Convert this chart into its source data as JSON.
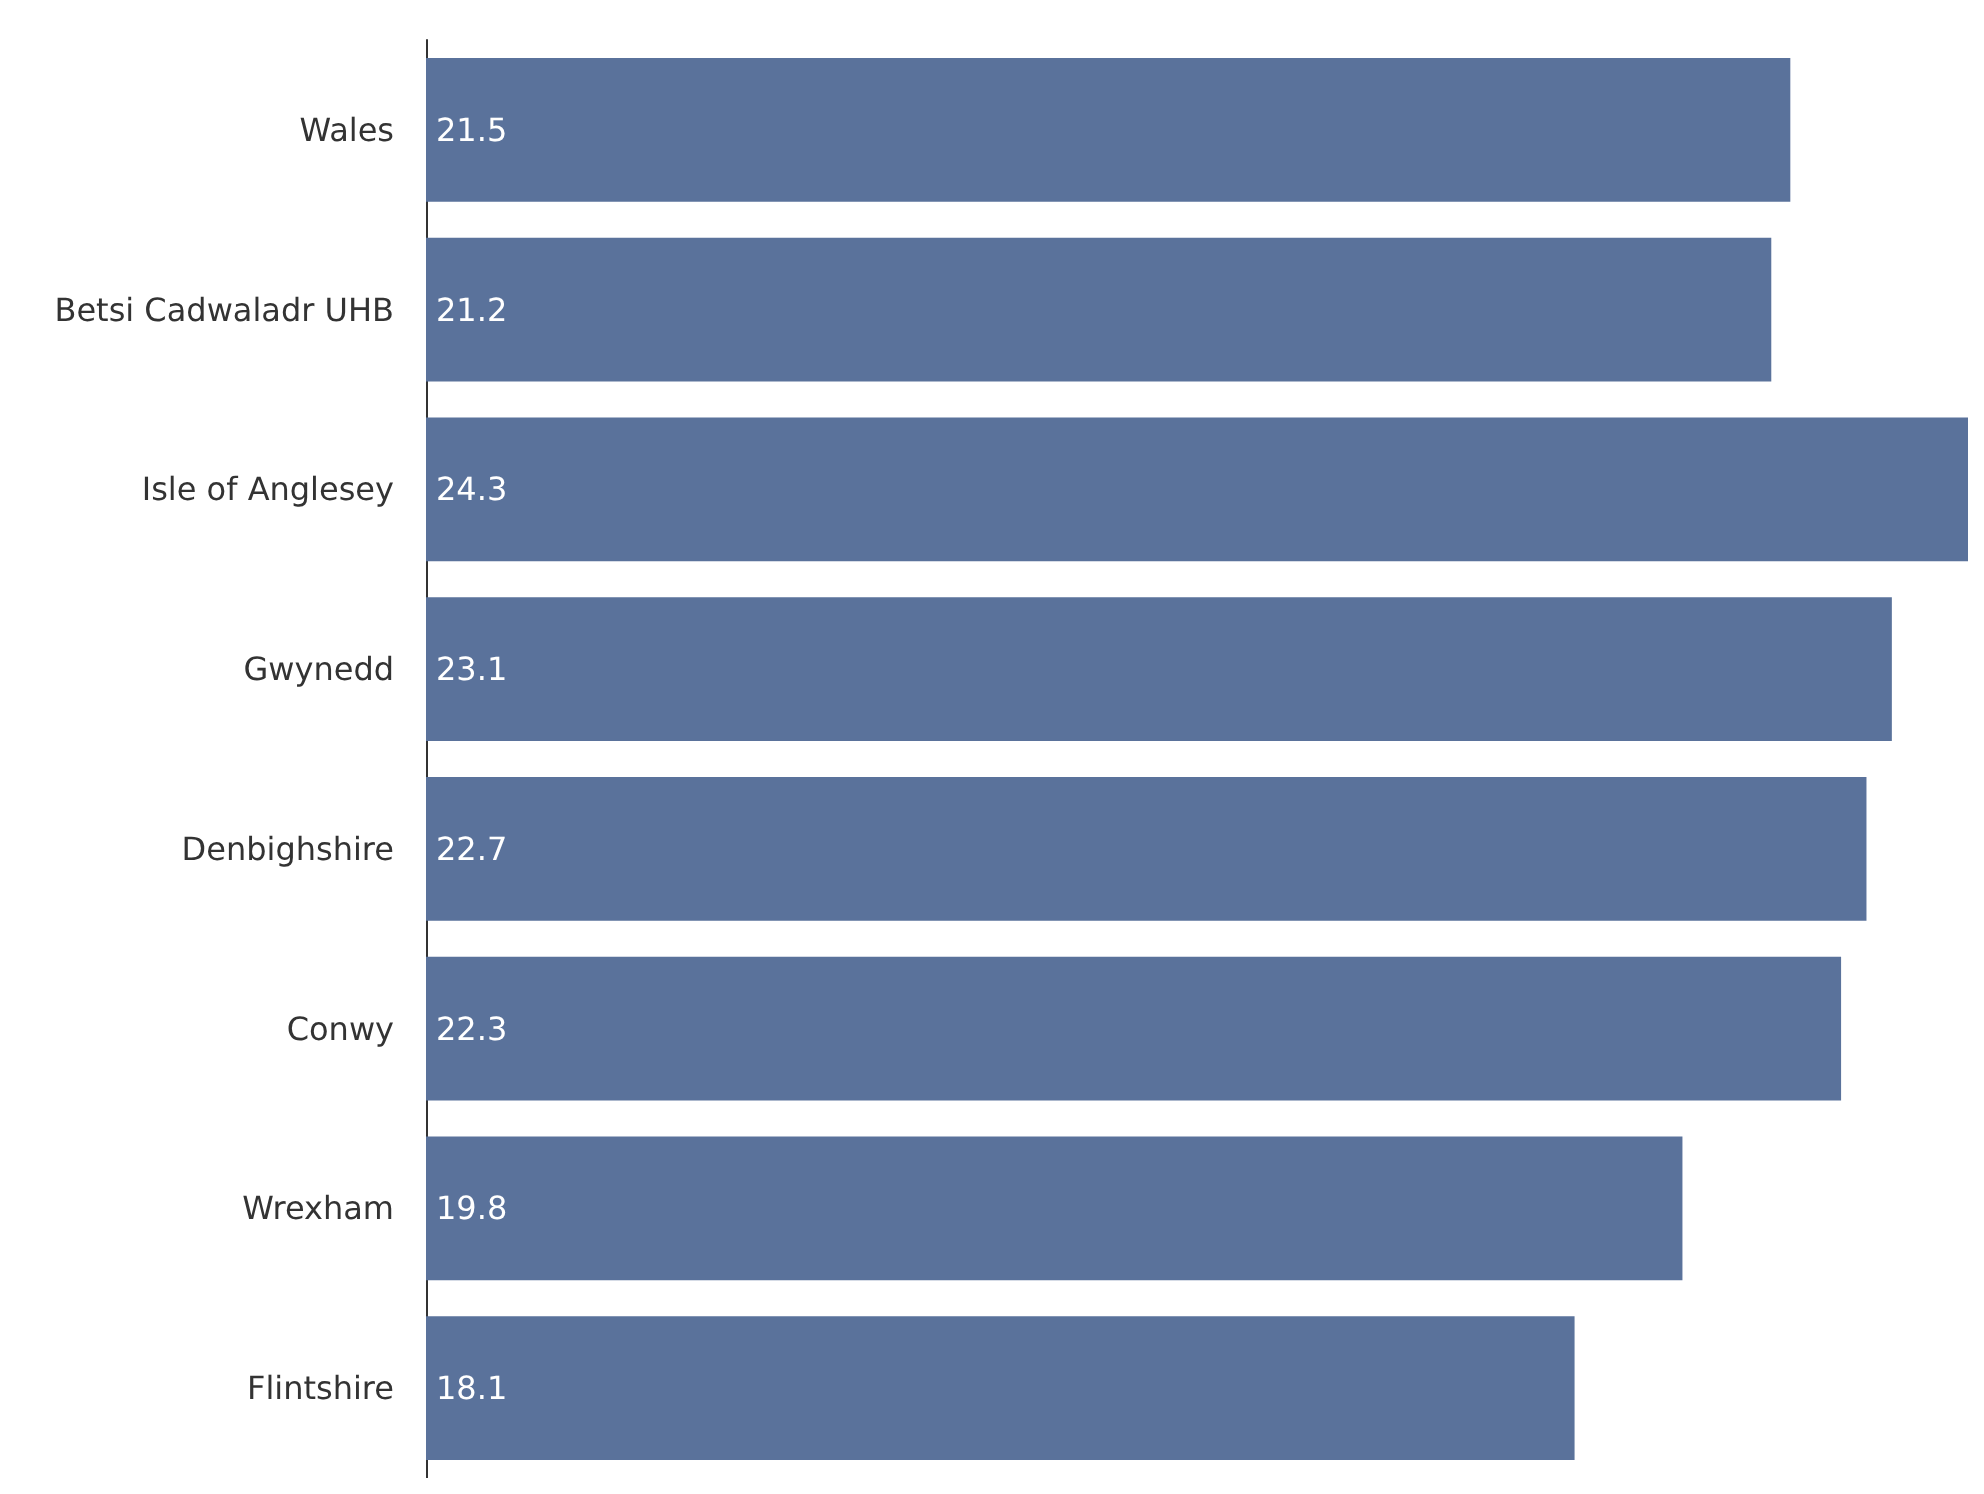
{
  "chart_data": {
    "type": "bar",
    "orientation": "horizontal",
    "categories": [
      "Wales",
      "Betsi Cadwaladr UHB",
      "Isle of Anglesey",
      "Gwynedd",
      "Denbighshire",
      "Conwy",
      "Wrexham",
      "Flintshire"
    ],
    "values": [
      21.5,
      21.2,
      24.3,
      23.1,
      22.7,
      22.3,
      19.8,
      18.1
    ],
    "color": "#5a729b",
    "data_labels": true,
    "tick_labels": "y"
  }
}
